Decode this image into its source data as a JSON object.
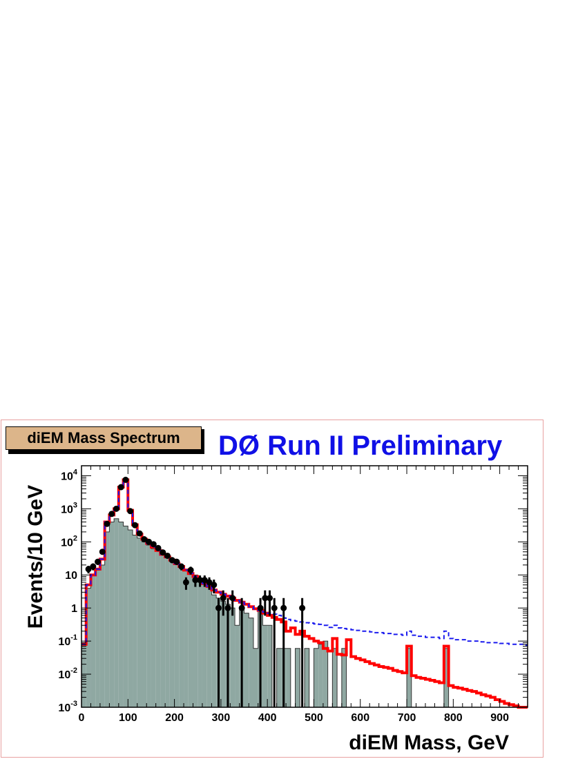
{
  "panel_label": "diEM Mass Spectrum",
  "title": "DØ Run II Preliminary",
  "colors": {
    "background_fill": "#8fa8a2",
    "total_line": "#ff0000",
    "signal_line": "#1a1aee",
    "title": "#1010e6",
    "badge": "#dcb58a"
  },
  "chart_data": {
    "type": "histogram",
    "xlabel": "diEM Mass, GeV",
    "ylabel": "Events/10 GeV",
    "xlim": [
      0,
      960
    ],
    "ylim": [
      0.001,
      20000
    ],
    "yscale": "log",
    "bin_width": 10,
    "x_ticks": [
      0,
      100,
      200,
      300,
      400,
      500,
      600,
      700,
      800,
      900
    ],
    "y_ticks": [
      {
        "base": "10",
        "exp": "-3",
        "value": 0.001
      },
      {
        "base": "10",
        "exp": "-2",
        "value": 0.01
      },
      {
        "base": "10",
        "exp": "-1",
        "value": 0.1
      },
      {
        "base": "1",
        "exp": "",
        "value": 1
      },
      {
        "base": "10",
        "exp": "",
        "value": 10
      },
      {
        "base": "10",
        "exp": "2",
        "value": 100
      },
      {
        "base": "10",
        "exp": "3",
        "value": 1000
      },
      {
        "base": "10",
        "exp": "4",
        "value": 10000
      }
    ],
    "series": [
      {
        "style": "filled-histogram",
        "values": [
          0.08,
          4,
          10,
          14,
          20,
          200,
          400,
          500,
          400,
          300,
          230,
          160,
          130,
          100,
          80,
          62,
          52,
          42,
          35,
          28,
          22,
          18,
          15,
          12,
          10,
          8,
          6,
          5,
          2.5,
          2.0,
          1.6,
          1.3,
          1.0,
          0.3,
          1.0,
          0.7,
          0.5,
          0.06,
          1.0,
          0.3,
          0.3,
          0.001,
          0.06,
          0.06,
          0.06,
          0.001,
          0.06,
          0.001,
          0.06,
          0.001,
          0.06,
          0.08,
          0.1,
          0.001,
          0.06,
          0.001,
          0.06,
          0.001,
          0.001,
          0.001,
          0.001,
          0.001,
          0.001,
          0.001,
          0.001,
          0.001,
          0.001,
          0.001,
          0.001,
          0.001,
          0.06,
          0.001,
          0.001,
          0.001,
          0.001,
          0.001,
          0.001,
          0.001,
          0.06,
          0.001,
          0.001,
          0.001,
          0.001,
          0.001,
          0.001,
          0.001,
          0.001,
          0.001,
          0.001,
          0.001,
          0.001,
          0.001,
          0.001,
          0.001,
          0.001,
          0.001
        ]
      },
      {
        "style": "solid-line",
        "values": [
          0.08,
          5,
          10,
          15,
          30,
          400,
          650,
          1000,
          4500,
          7500,
          900,
          330,
          170,
          120,
          90,
          70,
          55,
          42,
          35,
          28,
          22,
          18,
          14,
          11,
          9,
          7,
          5.5,
          4.5,
          3.5,
          3.0,
          2.6,
          2.3,
          2.0,
          1.7,
          1.5,
          1.3,
          1.1,
          0.95,
          0.85,
          0.7,
          0.6,
          0.52,
          0.45,
          0.38,
          0.2,
          0.25,
          0.16,
          0.2,
          0.14,
          0.12,
          0.1,
          0.09,
          0.06,
          0.05,
          0.12,
          0.04,
          0.038,
          0.11,
          0.034,
          0.03,
          0.027,
          0.024,
          0.021,
          0.019,
          0.017,
          0.016,
          0.015,
          0.013,
          0.012,
          0.011,
          0.07,
          0.009,
          0.008,
          0.0075,
          0.007,
          0.0065,
          0.006,
          0.0055,
          0.07,
          0.0045,
          0.004,
          0.0038,
          0.0035,
          0.0032,
          0.003,
          0.0027,
          0.0024,
          0.0022,
          0.002,
          0.0017,
          0.0015,
          0.0013,
          0.0012,
          0.0011,
          0.001,
          0.001
        ]
      },
      {
        "style": "dashed-line",
        "values": [
          0.08,
          5,
          10,
          15,
          30,
          400,
          650,
          1000,
          4500,
          7500,
          900,
          330,
          170,
          120,
          90,
          70,
          55,
          42,
          35,
          28,
          22,
          18,
          14,
          11,
          9,
          7,
          5.5,
          4.5,
          3.5,
          3.0,
          2.6,
          2.3,
          2.0,
          1.7,
          1.5,
          1.3,
          1.1,
          0.95,
          0.85,
          0.75,
          0.7,
          0.65,
          0.6,
          0.5,
          0.45,
          0.42,
          0.4,
          0.38,
          0.36,
          0.35,
          0.33,
          0.32,
          0.3,
          0.26,
          0.3,
          0.25,
          0.24,
          0.23,
          0.22,
          0.21,
          0.2,
          0.2,
          0.19,
          0.18,
          0.18,
          0.17,
          0.17,
          0.16,
          0.16,
          0.15,
          0.2,
          0.15,
          0.14,
          0.14,
          0.13,
          0.13,
          0.13,
          0.12,
          0.2,
          0.12,
          0.11,
          0.11,
          0.11,
          0.1,
          0.1,
          0.1,
          0.095,
          0.09,
          0.09,
          0.09,
          0.085,
          0.085,
          0.08,
          0.08,
          0.08,
          0.075
        ]
      },
      {
        "style": "points-with-error-bars",
        "points": [
          {
            "x": 15,
            "y": 15
          },
          {
            "x": 25,
            "y": 18
          },
          {
            "x": 35,
            "y": 25
          },
          {
            "x": 45,
            "y": 50
          },
          {
            "x": 55,
            "y": 350
          },
          {
            "x": 65,
            "y": 700
          },
          {
            "x": 75,
            "y": 1000
          },
          {
            "x": 85,
            "y": 4500
          },
          {
            "x": 95,
            "y": 7500
          },
          {
            "x": 105,
            "y": 850
          },
          {
            "x": 115,
            "y": 320
          },
          {
            "x": 125,
            "y": 180
          },
          {
            "x": 135,
            "y": 120
          },
          {
            "x": 145,
            "y": 100
          },
          {
            "x": 155,
            "y": 85
          },
          {
            "x": 165,
            "y": 65
          },
          {
            "x": 175,
            "y": 48
          },
          {
            "x": 185,
            "y": 38
          },
          {
            "x": 195,
            "y": 28
          },
          {
            "x": 205,
            "y": 25
          },
          {
            "x": 215,
            "y": 18
          },
          {
            "x": 225,
            "y": 6
          },
          {
            "x": 235,
            "y": 14
          },
          {
            "x": 245,
            "y": 7
          },
          {
            "x": 255,
            "y": 7
          },
          {
            "x": 265,
            "y": 7
          },
          {
            "x": 275,
            "y": 6
          },
          {
            "x": 285,
            "y": 5
          },
          {
            "x": 295,
            "y": 1
          },
          {
            "x": 305,
            "y": 2
          },
          {
            "x": 315,
            "y": 1
          },
          {
            "x": 325,
            "y": 2
          },
          {
            "x": 345,
            "y": 1
          },
          {
            "x": 385,
            "y": 1
          },
          {
            "x": 395,
            "y": 2
          },
          {
            "x": 405,
            "y": 2
          },
          {
            "x": 415,
            "y": 1
          },
          {
            "x": 435,
            "y": 1
          },
          {
            "x": 475,
            "y": 1
          }
        ]
      }
    ]
  }
}
